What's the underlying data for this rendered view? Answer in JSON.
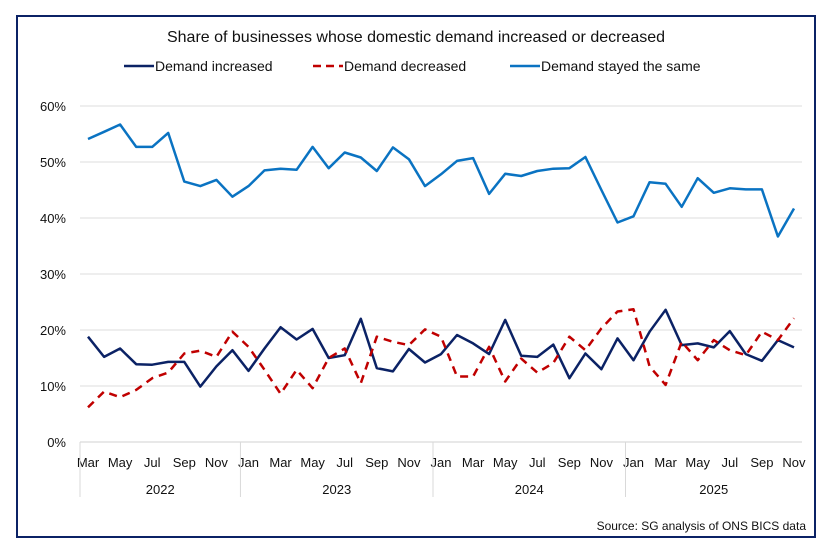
{
  "chart_data": {
    "type": "line",
    "title": "Share of businesses whose domestic demand increased or decreased",
    "source": "Source: SG analysis of ONS BICS data",
    "ylim": [
      0,
      60
    ],
    "y_ticks": [
      "0%",
      "10%",
      "20%",
      "30%",
      "40%",
      "50%",
      "60%"
    ],
    "grid": true,
    "legend": "top",
    "x_month_labels": [
      "Mar",
      "",
      "May",
      "",
      "Jul",
      "",
      "Sep",
      "",
      "Nov",
      "",
      "Jan",
      "",
      "Mar",
      "",
      "May",
      "",
      "Jul",
      "",
      "Sep",
      "",
      "Nov",
      "",
      "Jan",
      "",
      "Mar",
      "",
      "May",
      "",
      "Jul",
      "",
      "Sep",
      "",
      "Nov",
      "",
      "Jan",
      "",
      "Mar",
      "",
      "May",
      "",
      "Jul",
      "",
      "Sep",
      "",
      "Nov"
    ],
    "years": [
      {
        "label": "2022",
        "months": 10
      },
      {
        "label": "2023",
        "months": 12
      },
      {
        "label": "2024",
        "months": 12
      },
      {
        "label": "2025",
        "months": 11
      }
    ],
    "series": [
      {
        "name": "Demand increased",
        "color": "#0b2265",
        "dash": false,
        "values": [
          18.8,
          15.2,
          16.7,
          13.9,
          13.8,
          14.3,
          14.3,
          9.9,
          13.5,
          16.4,
          12.7,
          16.7,
          20.5,
          18.3,
          20.2,
          15.0,
          15.5,
          22.0,
          13.2,
          12.6,
          16.6,
          14.2,
          15.7,
          19.1,
          17.6,
          15.7,
          21.8,
          15.4,
          15.2,
          17.4,
          11.4,
          15.8,
          13.0,
          18.5,
          14.6,
          19.7,
          23.6,
          17.3,
          17.6,
          16.9,
          19.8,
          15.7,
          14.5,
          18.2,
          16.9
        ]
      },
      {
        "name": "Demand decreased",
        "color": "#c00000",
        "dash": true,
        "values": [
          6.2,
          9.0,
          8.0,
          9.3,
          11.4,
          12.4,
          15.8,
          16.3,
          15.2,
          19.7,
          17.0,
          12.9,
          8.6,
          12.9,
          9.6,
          15.0,
          16.7,
          10.5,
          18.8,
          17.9,
          17.3,
          20.1,
          18.8,
          11.7,
          11.7,
          17.0,
          10.8,
          14.9,
          12.4,
          14.1,
          18.8,
          16.4,
          20.3,
          23.3,
          23.7,
          13.5,
          10.2,
          17.9,
          14.6,
          18.2,
          16.4,
          15.5,
          19.7,
          18.2,
          22.1
        ]
      },
      {
        "name": "Demand stayed the same",
        "color": "#0a73c2",
        "dash": false,
        "values": [
          54.1,
          55.4,
          56.7,
          52.7,
          52.7,
          55.2,
          46.5,
          45.7,
          46.8,
          43.8,
          45.7,
          48.5,
          48.8,
          48.6,
          52.7,
          48.9,
          51.7,
          50.8,
          48.4,
          52.6,
          50.5,
          45.7,
          47.8,
          50.2,
          50.7,
          44.3,
          47.9,
          47.5,
          48.4,
          48.8,
          48.9,
          50.9,
          45.0,
          39.2,
          40.3,
          46.4,
          46.1,
          42.0,
          47.1,
          44.5,
          45.3,
          45.1,
          45.1,
          36.7,
          41.7
        ]
      }
    ]
  }
}
